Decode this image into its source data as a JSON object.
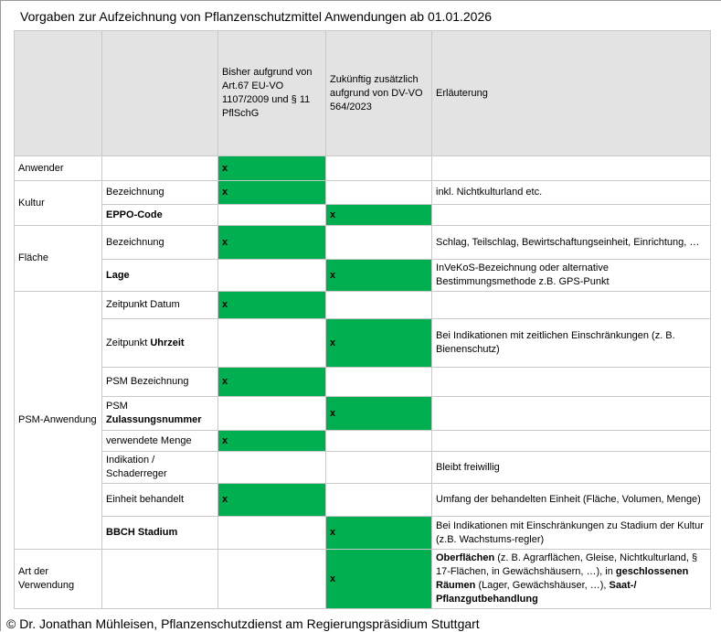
{
  "title": "Vorgaben zur Aufzeichnung von Pflanzenschutzmittel Anwendungen ab 01.01.2026",
  "footer": "© Dr. Jonathan Mühleisen, Pflanzenschutzdienst am Regierungspräsidium Stuttgart",
  "colors": {
    "check_green": "#00B050",
    "header_bg": "#e3e3e3"
  },
  "table": {
    "check_mark": "x",
    "columns": {
      "category": "",
      "item": "",
      "bisher": "Bisher aufgrund von Art.67 EU-VO 1107/2009 und § 11 PflSchG",
      "zukuenftig": "Zukünftig zusätzlich aufgrund von DV-VO 564/2023",
      "erlaeuterung": "Erläuterung"
    },
    "rows": [
      {
        "group": {
          "label": "Anwender",
          "span": 1
        },
        "item": "",
        "bisher": true,
        "zukuenftig": false,
        "erlaeuterung": ""
      },
      {
        "group": {
          "label": "Kultur",
          "span": 2
        },
        "item": "Bezeichnung",
        "bisher": true,
        "zukuenftig": false,
        "erlaeuterung": "inkl. Nichtkulturland etc."
      },
      {
        "item": [
          [
            "EPPO-Code",
            1
          ]
        ],
        "bisher": false,
        "zukuenftig": true,
        "erlaeuterung": ""
      },
      {
        "group": {
          "label": "Fläche",
          "span": 2
        },
        "item": "Bezeichnung",
        "bisher": true,
        "zukuenftig": false,
        "erlaeuterung": "Schlag, Teilschlag, Bewirtschaftungseinheit, Einrichtung, …"
      },
      {
        "item": [
          [
            "Lage",
            1
          ]
        ],
        "bisher": false,
        "zukuenftig": true,
        "erlaeuterung": "InVeKoS-Bezeichnung oder alternative Bestimmungsmethode z.B. GPS-Punkt"
      },
      {
        "group": {
          "label": "PSM-Anwendung",
          "span": 8
        },
        "item": "Zeitpunkt Datum",
        "bisher": true,
        "zukuenftig": false,
        "erlaeuterung": ""
      },
      {
        "item": [
          [
            "Zeitpunkt ",
            0
          ],
          [
            "Uhrzeit",
            1
          ]
        ],
        "bisher": false,
        "zukuenftig": true,
        "erlaeuterung": "Bei Indikationen mit zeitlichen Einschränkungen (z. B. Bienenschutz)"
      },
      {
        "item": "PSM Bezeichnung",
        "bisher": true,
        "zukuenftig": false,
        "erlaeuterung": ""
      },
      {
        "item": [
          [
            "PSM ",
            0
          ],
          [
            "Zulassungsnummer",
            1
          ]
        ],
        "bisher": false,
        "zukuenftig": true,
        "erlaeuterung": ""
      },
      {
        "item": "verwendete Menge",
        "bisher": true,
        "zukuenftig": false,
        "erlaeuterung": ""
      },
      {
        "item": "Indikation / Schaderreger",
        "bisher": false,
        "zukuenftig": false,
        "erlaeuterung": "Bleibt freiwillig"
      },
      {
        "item": "Einheit behandelt",
        "bisher": true,
        "zukuenftig": false,
        "erlaeuterung": "Umfang der behandelten Einheit (Fläche, Volumen, Menge)"
      },
      {
        "item": [
          [
            "BBCH Stadium",
            1
          ]
        ],
        "bisher": false,
        "zukuenftig": true,
        "erlaeuterung": "Bei Indikationen mit Einschränkungen zu Stadium der Kultur (z.B. Wachstums-regler)"
      },
      {
        "group": {
          "label": "Art der Verwendung",
          "span": 1
        },
        "item": "",
        "bisher": false,
        "zukuenftig": true,
        "erlaeuterung": [
          [
            "Oberflächen",
            1
          ],
          [
            " (z. B. Agrarflächen, Gleise, Nichtkulturland, § 17-Flächen, in Gewächshäusern, …), in ",
            0
          ],
          [
            "geschlossenen Räumen",
            1
          ],
          [
            " (Lager, Gewächshäuser, …), ",
            0
          ],
          [
            "Saat-/ Pflanzgutbehandlung",
            1
          ]
        ]
      }
    ]
  }
}
